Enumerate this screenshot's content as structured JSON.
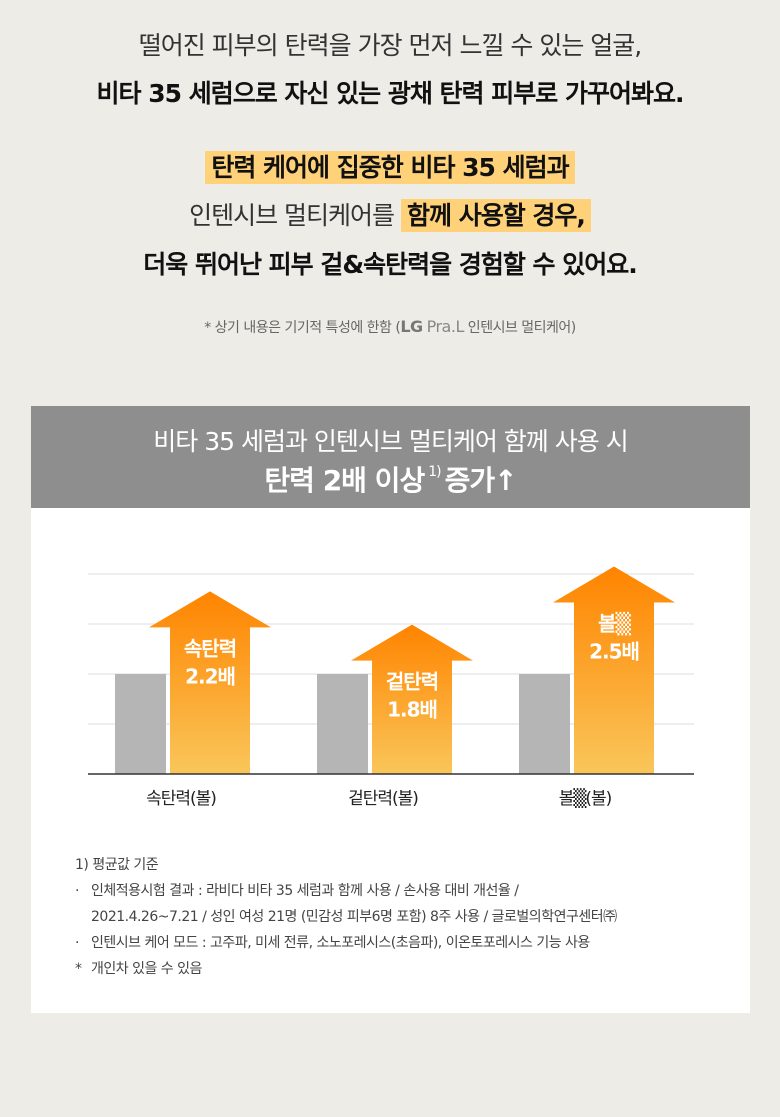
{
  "intro": {
    "line1": "떨어진 피부의 탄력을 가장 먼저 느낄 수 있는 얼굴,",
    "line2": "비타 35 세럼으로 자신 있는 광채 탄력 피부로 가꾸어봐요.",
    "line3": "탄력 케어에 집중한 비타 35 세럼과",
    "line4_plain": "인텐시브 멀티케어를",
    "line4_highlight": "함께 사용할 경우,",
    "line5": "더욱 뛰어난 피부 겉&속탄력을 경험할 수 있어요.",
    "note_prefix": "* 상기 내용은 기기적 특성에 한함 (",
    "note_brand_lg": "LG",
    "note_brand_pral": "Pra.L",
    "note_suffix": " 인텐시브 멀티케어)"
  },
  "card": {
    "title": "비타 35 세럼과 인텐시브 멀티케어 함께 사용 시",
    "subtitle_main": "탄력 2배 이상",
    "subtitle_footnote": "1)",
    "subtitle_tail": "증가↑"
  },
  "chart_data": {
    "type": "bar",
    "categories": [
      "속탄력(볼)",
      "겉탄력(볼)",
      "볼▒(볼)"
    ],
    "series": [
      {
        "name": "",
        "values": [
          1.0,
          1.0,
          1.0
        ]
      },
      {
        "name": "",
        "values": [
          2.2,
          1.8,
          2.5
        ]
      }
    ],
    "data_labels": [
      {
        "name": "속탄력",
        "value": "2.2배"
      },
      {
        "name": "겉탄력",
        "value": "1.8배"
      },
      {
        "name": "볼▒",
        "value": "2.5배"
      }
    ],
    "ylim": [
      0,
      2.5
    ],
    "grid": true,
    "colors": {
      "baseline": "#b5b5b5",
      "arrow_top": "#ff8a00",
      "arrow_bottom": "#f9c65a",
      "axis": "#333333",
      "grid": "#dddddd"
    }
  },
  "footnotes": {
    "f1": "1) 평균값 기준",
    "f2": "인체적용시험 결과 : 라비다 비타 35 세럼과 함께 사용 / 손사용 대비 개선율 /",
    "f2b": "2021.4.26~7.21 / 성인 여성 21명 (민감성 피부6명 포함) 8주 사용 / 글로벌의학연구센터㈜",
    "f3": "인텐시브 케어 모드 : 고주파, 미세 전류, 소노포레시스(초음파), 이온토포레시스 기능 사용",
    "f4": "개인차 있을 수 있음",
    "bullet": "·",
    "star": "*"
  }
}
